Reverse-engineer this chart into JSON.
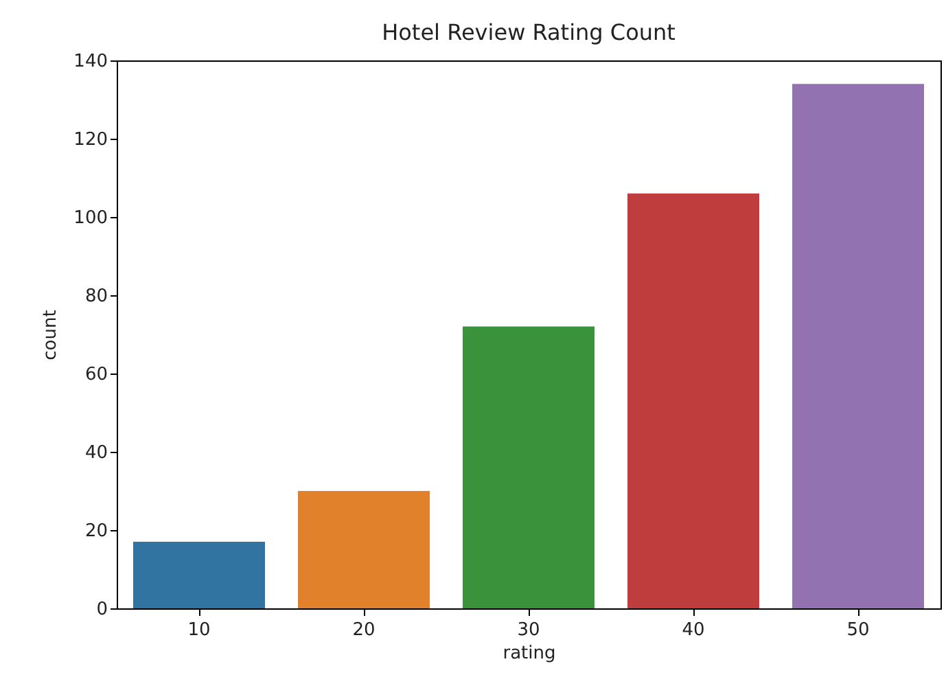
{
  "chart_data": {
    "type": "bar",
    "title": "Hotel Review Rating Count",
    "xlabel": "rating",
    "ylabel": "count",
    "categories": [
      "10",
      "20",
      "30",
      "40",
      "50"
    ],
    "values": [
      17,
      30,
      72,
      106,
      134
    ],
    "colors": [
      "#3274a1",
      "#e1812c",
      "#3a923a",
      "#c03d3e",
      "#9372b2"
    ],
    "ylim": [
      0,
      140
    ],
    "yticks": [
      0,
      20,
      40,
      60,
      80,
      100,
      120,
      140
    ],
    "grid": false,
    "legend": false
  }
}
